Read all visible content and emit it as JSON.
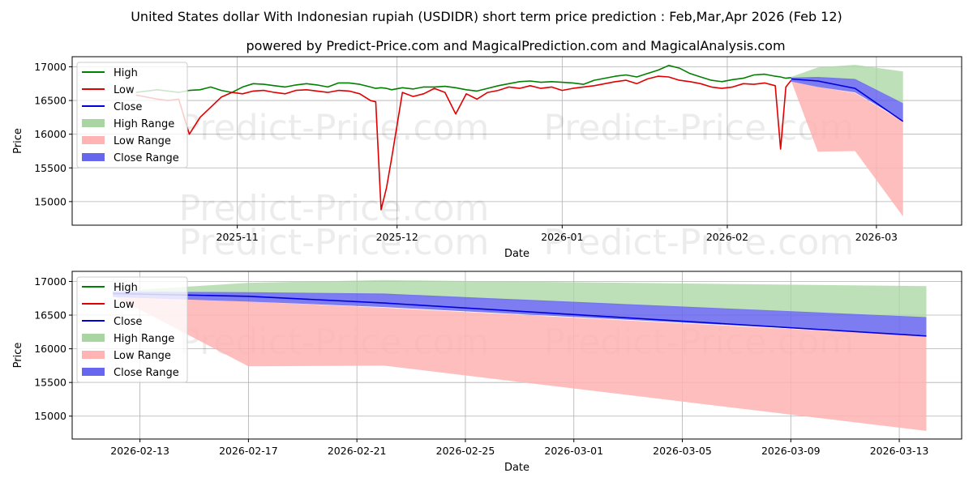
{
  "title": "United States dollar With Indonesian rupiah (USDIDR) short term price prediction : Feb,Mar,Apr 2026 (Feb 12)",
  "subtitle": "powered by Predict-Price.com and MagicalPrediction.com and MagicalAnalysis.com",
  "watermark": "Predict-Price.com",
  "colors": {
    "high": "#008000",
    "low": "#e00000",
    "close": "#0000dd",
    "high_range": "#a8d5a2",
    "low_range": "#ffb3b3",
    "close_range": "#6666ee"
  },
  "legend": [
    "High",
    "Low",
    "Close",
    "High Range",
    "Low Range",
    "Close Range"
  ],
  "chart_data": [
    {
      "type": "line",
      "xlabel": "Date",
      "ylabel": "Price",
      "ylim": [
        14650,
        17150
      ],
      "xlim_days": [
        -12,
        155
      ],
      "x_tick_labels": [
        "2025-11",
        "2025-12",
        "2026-01",
        "2026-02",
        "2026-03"
      ],
      "x_tick_days": [
        19,
        49,
        80,
        111,
        139
      ],
      "y_ticks": [
        15000,
        15500,
        16000,
        16500,
        17000
      ],
      "x_origin_date": "2025-10-13",
      "history": {
        "days": [
          0,
          2,
          4,
          6,
          8,
          10,
          12,
          14,
          16,
          18,
          20,
          22,
          24,
          26,
          28,
          30,
          32,
          34,
          36,
          38,
          40,
          42,
          44,
          45,
          46,
          47,
          48,
          50,
          52,
          54,
          56,
          58,
          60,
          62,
          64,
          66,
          68,
          70,
          72,
          74,
          76,
          78,
          80,
          82,
          84,
          86,
          88,
          90,
          92,
          94,
          96,
          98,
          100,
          102,
          104,
          106,
          108,
          110,
          112,
          114,
          116,
          118,
          120,
          121,
          122,
          123
        ],
        "high": [
          16620,
          16640,
          16660,
          16640,
          16620,
          16650,
          16660,
          16700,
          16650,
          16620,
          16700,
          16750,
          16740,
          16720,
          16700,
          16730,
          16750,
          16730,
          16700,
          16760,
          16760,
          16740,
          16700,
          16680,
          16690,
          16680,
          16660,
          16690,
          16670,
          16700,
          16700,
          16710,
          16690,
          16660,
          16640,
          16680,
          16720,
          16750,
          16780,
          16790,
          16770,
          16780,
          16770,
          16760,
          16740,
          16800,
          16830,
          16860,
          16880,
          16850,
          16900,
          16950,
          17020,
          16980,
          16900,
          16850,
          16800,
          16780,
          16810,
          16830,
          16880,
          16890,
          16860,
          16850,
          16830,
          16840
        ],
        "low": [
          16580,
          16550,
          16520,
          16500,
          16520,
          16000,
          16250,
          16400,
          16550,
          16620,
          16600,
          16640,
          16650,
          16620,
          16600,
          16650,
          16660,
          16640,
          16620,
          16650,
          16640,
          16600,
          16500,
          16480,
          14880,
          15200,
          15650,
          16620,
          16560,
          16600,
          16680,
          16620,
          16300,
          16600,
          16520,
          16620,
          16650,
          16700,
          16680,
          16720,
          16680,
          16700,
          16650,
          16680,
          16700,
          16720,
          16750,
          16780,
          16800,
          16750,
          16820,
          16860,
          16850,
          16800,
          16780,
          16750,
          16700,
          16680,
          16700,
          16750,
          16740,
          16760,
          16720,
          15780,
          16700,
          16800
        ],
        "close": [
          16600,
          16590,
          16580,
          16560,
          16570,
          16450,
          16500,
          16550,
          16620,
          16650,
          16660,
          16690,
          16700,
          16680,
          16650,
          16690,
          16700,
          16690,
          16660,
          16700,
          16700,
          16670,
          16620,
          16600,
          16550,
          16580,
          16620,
          16660,
          16630,
          16660,
          16690,
          16670,
          16600,
          16640,
          16600,
          16650,
          16690,
          16720,
          16730,
          16750,
          16720,
          16740,
          16710,
          16720,
          16720,
          16760,
          16790,
          16820,
          16840,
          16800,
          16860,
          16900,
          16930,
          16890,
          16840,
          16800,
          16750,
          16730,
          16750,
          16790,
          16800,
          16820,
          16790,
          16700,
          16780,
          16820
        ]
      },
      "forecast": {
        "days": [
          123,
          128,
          135,
          144
        ],
        "high_upper": [
          16850,
          16990,
          17030,
          16930
        ],
        "high_lower": [
          16830,
          16830,
          16800,
          16460
        ],
        "close": [
          16820,
          16790,
          16680,
          16190
        ],
        "close_upper": [
          16840,
          16850,
          16820,
          16460
        ],
        "close_lower": [
          16780,
          16700,
          16620,
          16200
        ],
        "low_upper": [
          16780,
          16700,
          16610,
          16190
        ],
        "low_lower": [
          16790,
          15740,
          15750,
          14780
        ]
      }
    },
    {
      "type": "line",
      "xlabel": "Date",
      "ylabel": "Price",
      "ylim": [
        14660,
        17150
      ],
      "xlim_days": [
        -1.5,
        31.3
      ],
      "x_tick_labels": [
        "2026-02-13",
        "2026-02-17",
        "2026-02-21",
        "2026-02-25",
        "2026-03-01",
        "2026-03-05",
        "2026-03-09",
        "2026-03-13"
      ],
      "x_tick_days": [
        1,
        5,
        9,
        13,
        17,
        21,
        25,
        29
      ],
      "y_ticks": [
        15000,
        15500,
        16000,
        16500,
        17000
      ],
      "x_origin_date": "2026-02-12",
      "forecast": {
        "days": [
          0,
          5,
          10,
          30
        ],
        "high_upper": [
          16850,
          16980,
          17020,
          16930
        ],
        "high_lower": [
          16830,
          16830,
          16800,
          16460
        ],
        "close": [
          16820,
          16780,
          16680,
          16190
        ],
        "close_upper": [
          16850,
          16840,
          16820,
          16470
        ],
        "close_lower": [
          16770,
          16700,
          16620,
          16200
        ],
        "low_upper": [
          16780,
          16700,
          16610,
          16190
        ],
        "low_lower": [
          16790,
          15740,
          15750,
          14780
        ]
      }
    }
  ]
}
